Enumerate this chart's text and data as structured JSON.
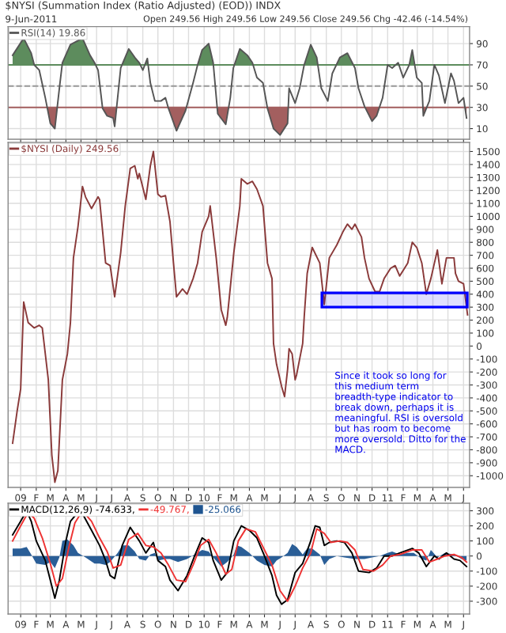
{
  "chart_data": [
    {
      "type": "line",
      "title": "$NYSI (Summation Index (Ratio Adjusted) (EOD)) INDX",
      "subtitle": "9-Jun-2011",
      "annotations": [
        "Open 249.56 High 249.56 Low 249.56 Close 249.56 Chg -42.46 (-14.54%)"
      ],
      "series": [
        {
          "name": "RSI(14) 19.86",
          "color": "#555555",
          "x": [
            "2008-12-16",
            "2009-01-07",
            "2009-01-22",
            "2009-01-28",
            "2009-02-07",
            "2009-02-19",
            "2009-03-01",
            "2009-03-10",
            "2009-03-19",
            "2009-03-25",
            "2009-04-10",
            "2009-05-04",
            "2009-05-19",
            "2009-05-28",
            "2009-06-04",
            "2009-06-13",
            "2009-06-22",
            "2009-07-04",
            "2009-07-07",
            "2009-07-19",
            "2009-08-04",
            "2009-08-16",
            "2009-08-25",
            "2009-09-01",
            "2009-09-10",
            "2009-09-16",
            "2009-09-25",
            "2009-10-07",
            "2009-10-16",
            "2009-10-22",
            "2009-11-07",
            "2009-11-25",
            "2009-12-10",
            "2009-12-19",
            "2009-12-28",
            "2010-01-10",
            "2010-01-19",
            "2010-01-28",
            "2010-02-13",
            "2010-02-22",
            "2010-02-28",
            "2010-03-13",
            "2010-03-28",
            "2010-04-07",
            "2010-04-16",
            "2010-04-28",
            "2010-05-07",
            "2010-05-19",
            "2010-06-01",
            "2010-06-16",
            "2010-06-19",
            "2010-07-01",
            "2010-07-10",
            "2010-07-19",
            "2010-08-01",
            "2010-08-13",
            "2010-08-22",
            "2010-09-04",
            "2010-09-13",
            "2010-09-28",
            "2010-10-13",
            "2010-10-28",
            "2010-11-04",
            "2010-11-16",
            "2010-12-01",
            "2010-12-10",
            "2010-12-22",
            "2011-01-01",
            "2011-01-10",
            "2011-01-22",
            "2011-02-01",
            "2011-02-13",
            "2011-02-19",
            "2011-02-28",
            "2011-03-10",
            "2011-03-13",
            "2011-03-25",
            "2011-04-04",
            "2011-04-13",
            "2011-04-25",
            "2011-05-07",
            "2011-05-13",
            "2011-05-22",
            "2011-06-01",
            "2011-06-07"
          ],
          "values": [
            79,
            95,
            81,
            70,
            65,
            39,
            15,
            10,
            48,
            72,
            89,
            95,
            79,
            72,
            65,
            29,
            22,
            20,
            12,
            67,
            85,
            77,
            72,
            65,
            76,
            53,
            36,
            36,
            39,
            29,
            8,
            27,
            53,
            70,
            84,
            90,
            72,
            24,
            14,
            39,
            67,
            85,
            79,
            72,
            58,
            53,
            29,
            10,
            4,
            15,
            48,
            34,
            48,
            70,
            89,
            77,
            48,
            36,
            62,
            77,
            81,
            67,
            48,
            31,
            17,
            22,
            39,
            70,
            67,
            72,
            58,
            70,
            84,
            58,
            53,
            22,
            36,
            70,
            60,
            34,
            62,
            55,
            34,
            39,
            20
          ]
        }
      ],
      "ref_lines": [
        {
          "axis": "y",
          "value": 70,
          "color": "#5d8c5d"
        },
        {
          "axis": "y",
          "value": 30,
          "color": "#a35f5f"
        },
        {
          "axis": "y",
          "value": 50,
          "color": "#999999",
          "line_style": "dashed"
        }
      ],
      "xlim": [
        "2008-12-07",
        "2011-06-13"
      ],
      "ylim": [
        0,
        106
      ],
      "yticks": [
        10,
        30,
        50,
        70,
        90
      ],
      "grid": true,
      "legend": "top left",
      "tick_labels": "y",
      "xticks": [
        {
          "value": "2009-01-01",
          "label": null
        },
        {
          "value": "2009-02-01",
          "label": null
        },
        {
          "value": "2009-03-01",
          "label": null
        },
        {
          "value": "2009-04-01",
          "label": null
        },
        {
          "value": "2009-05-01",
          "label": null
        },
        {
          "value": "2009-06-01",
          "label": null
        },
        {
          "value": "2009-07-01",
          "label": null
        },
        {
          "value": "2009-08-01",
          "label": null
        },
        {
          "value": "2009-09-01",
          "label": null
        },
        {
          "value": "2009-10-01",
          "label": null
        },
        {
          "value": "2009-11-01",
          "label": null
        },
        {
          "value": "2009-12-01",
          "label": null
        },
        {
          "value": "2010-01-01",
          "label": null
        },
        {
          "value": "2010-02-01",
          "label": null
        },
        {
          "value": "2010-03-01",
          "label": null
        },
        {
          "value": "2010-04-01",
          "label": null
        },
        {
          "value": "2010-05-01",
          "label": null
        },
        {
          "value": "2010-06-01",
          "label": null
        },
        {
          "value": "2010-07-01",
          "label": null
        },
        {
          "value": "2010-08-01",
          "label": null
        },
        {
          "value": "2010-09-01",
          "label": null
        },
        {
          "value": "2010-10-01",
          "label": null
        },
        {
          "value": "2010-11-01",
          "label": null
        },
        {
          "value": "2010-12-01",
          "label": null
        },
        {
          "value": "2011-01-01",
          "label": null
        },
        {
          "value": "2011-02-01",
          "label": null
        },
        {
          "value": "2011-03-01",
          "label": null
        },
        {
          "value": "2011-04-01",
          "label": null
        },
        {
          "value": "2011-05-01",
          "label": null
        },
        {
          "value": "2011-06-01",
          "label": null
        }
      ]
    },
    {
      "type": "line",
      "annotations": [
        "Since it took so long for this medium term breadth-type indicator to break down, perhaps it is meaningful. RSI is oversold but has room to become more oversold. Ditto for the MACD."
      ],
      "series": [
        {
          "name": "$NYSI (Daily) 249.56",
          "color": "#8a3a3a",
          "x": [
            "2008-12-16",
            "2008-12-25",
            "2009-01-01",
            "2009-01-07",
            "2009-01-16",
            "2009-01-28",
            "2009-02-07",
            "2009-02-13",
            "2009-02-25",
            "2009-03-04",
            "2009-03-10",
            "2009-03-16",
            "2009-03-25",
            "2009-04-04",
            "2009-04-10",
            "2009-04-16",
            "2009-04-25",
            "2009-05-04",
            "2009-05-10",
            "2009-05-22",
            "2009-06-04",
            "2009-06-07",
            "2009-06-19",
            "2009-06-28",
            "2009-07-07",
            "2009-07-19",
            "2009-07-28",
            "2009-08-07",
            "2009-08-16",
            "2009-08-22",
            "2009-08-25",
            "2009-09-07",
            "2009-09-16",
            "2009-09-22",
            "2009-10-01",
            "2009-10-07",
            "2009-10-16",
            "2009-10-25",
            "2009-11-01",
            "2009-11-07",
            "2009-11-19",
            "2009-11-28",
            "2009-12-10",
            "2009-12-19",
            "2009-12-28",
            "2010-01-10",
            "2010-01-13",
            "2010-01-25",
            "2010-02-04",
            "2010-02-13",
            "2010-02-16",
            "2010-03-01",
            "2010-03-13",
            "2010-03-16",
            "2010-03-28",
            "2010-04-07",
            "2010-04-16",
            "2010-04-28",
            "2010-05-07",
            "2010-05-16",
            "2010-05-19",
            "2010-05-25",
            "2010-06-04",
            "2010-06-10",
            "2010-06-16",
            "2010-06-19",
            "2010-06-25",
            "2010-07-01",
            "2010-07-04",
            "2010-07-16",
            "2010-07-19",
            "2010-07-25",
            "2010-08-04",
            "2010-08-19",
            "2010-08-28",
            "2010-09-07",
            "2010-09-22",
            "2010-10-04",
            "2010-10-13",
            "2010-10-22",
            "2010-10-28",
            "2010-11-10",
            "2010-11-16",
            "2010-11-25",
            "2010-12-07",
            "2010-12-16",
            "2010-12-25",
            "2011-01-07",
            "2011-01-16",
            "2011-01-25",
            "2011-02-10",
            "2011-02-19",
            "2011-02-28",
            "2011-03-10",
            "2011-03-19",
            "2011-03-28",
            "2011-04-10",
            "2011-04-19",
            "2011-04-28",
            "2011-05-13",
            "2011-05-16",
            "2011-05-22",
            "2011-06-01",
            "2011-06-09"
          ],
          "values": [
            -750,
            -500,
            -330,
            340,
            180,
            140,
            160,
            140,
            -260,
            -840,
            -1050,
            -960,
            -260,
            -60,
            180,
            680,
            920,
            1230,
            1150,
            1060,
            1150,
            1130,
            640,
            620,
            380,
            720,
            1080,
            1370,
            1390,
            1290,
            1330,
            1130,
            1390,
            1500,
            1170,
            1150,
            1160,
            960,
            640,
            380,
            440,
            400,
            520,
            640,
            880,
            1000,
            1080,
            680,
            280,
            160,
            220,
            720,
            1080,
            1290,
            1250,
            1270,
            1210,
            1080,
            640,
            520,
            20,
            -140,
            -310,
            -390,
            -180,
            -20,
            -60,
            -260,
            -220,
            20,
            220,
            560,
            760,
            640,
            320,
            680,
            780,
            880,
            940,
            900,
            940,
            840,
            680,
            520,
            420,
            420,
            520,
            600,
            620,
            540,
            640,
            800,
            760,
            640,
            400,
            520,
            740,
            480,
            680,
            680,
            560,
            500,
            480,
            240
          ]
        }
      ],
      "bands": [
        {
          "axis": "y",
          "from": 300,
          "to": 410,
          "color": "#0000ff"
        }
      ],
      "xlim": [
        "2008-12-07",
        "2011-06-13"
      ],
      "ylim": [
        -1090,
        1570
      ],
      "yticks": [
        -1000,
        -900,
        -800,
        -700,
        -600,
        -500,
        -400,
        -300,
        -200,
        -100,
        0,
        100,
        200,
        300,
        400,
        500,
        600,
        700,
        800,
        900,
        1000,
        1100,
        1200,
        1300,
        1400,
        1500
      ],
      "grid": true,
      "legend": "top left",
      "xticks": [
        {
          "value": "2009-01-01",
          "label": "09"
        },
        {
          "value": "2009-02-01",
          "label": "F"
        },
        {
          "value": "2009-03-01",
          "label": "M"
        },
        {
          "value": "2009-04-01",
          "label": "A"
        },
        {
          "value": "2009-05-01",
          "label": "M"
        },
        {
          "value": "2009-06-01",
          "label": "J"
        },
        {
          "value": "2009-07-01",
          "label": "J"
        },
        {
          "value": "2009-08-01",
          "label": "A"
        },
        {
          "value": "2009-09-01",
          "label": "S"
        },
        {
          "value": "2009-10-01",
          "label": "O"
        },
        {
          "value": "2009-11-01",
          "label": "N"
        },
        {
          "value": "2009-12-01",
          "label": "D"
        },
        {
          "value": "2010-01-01",
          "label": "10"
        },
        {
          "value": "2010-02-01",
          "label": "F"
        },
        {
          "value": "2010-03-01",
          "label": "M"
        },
        {
          "value": "2010-04-01",
          "label": "A"
        },
        {
          "value": "2010-05-01",
          "label": "M"
        },
        {
          "value": "2010-06-01",
          "label": "J"
        },
        {
          "value": "2010-07-01",
          "label": "J"
        },
        {
          "value": "2010-08-01",
          "label": "A"
        },
        {
          "value": "2010-09-01",
          "label": "S"
        },
        {
          "value": "2010-10-01",
          "label": "O"
        },
        {
          "value": "2010-11-01",
          "label": "N"
        },
        {
          "value": "2010-12-01",
          "label": "D"
        },
        {
          "value": "2011-01-01",
          "label": "11"
        },
        {
          "value": "2011-02-01",
          "label": "F"
        },
        {
          "value": "2011-03-01",
          "label": "M"
        },
        {
          "value": "2011-04-01",
          "label": "A"
        },
        {
          "value": "2011-05-01",
          "label": "M"
        },
        {
          "value": "2011-06-01",
          "label": "J"
        }
      ]
    },
    {
      "type": "line",
      "series": [
        {
          "name": "MACD(12,26,9) -74.633,",
          "color": "#000000",
          "x": [
            "2008-12-16",
            "2009-01-01",
            "2009-01-13",
            "2009-01-22",
            "2009-02-01",
            "2009-02-19",
            "2009-03-01",
            "2009-03-10",
            "2009-03-19",
            "2009-04-01",
            "2009-04-10",
            "2009-04-25",
            "2009-05-04",
            "2009-05-22",
            "2009-06-07",
            "2009-06-19",
            "2009-06-28",
            "2009-07-07",
            "2009-07-22",
            "2009-08-07",
            "2009-08-25",
            "2009-09-07",
            "2009-09-22",
            "2009-10-01",
            "2009-10-16",
            "2009-10-25",
            "2009-11-10",
            "2009-11-28",
            "2009-12-13",
            "2009-12-28",
            "2010-01-10",
            "2010-01-19",
            "2010-02-04",
            "2010-02-16",
            "2010-03-01",
            "2010-03-16",
            "2010-04-01",
            "2010-04-16",
            "2010-05-01",
            "2010-05-16",
            "2010-05-25",
            "2010-06-04",
            "2010-06-16",
            "2010-07-01",
            "2010-07-16",
            "2010-08-01",
            "2010-08-10",
            "2010-08-19",
            "2010-08-28",
            "2010-09-07",
            "2010-09-22",
            "2010-10-07",
            "2010-10-22",
            "2010-11-04",
            "2010-11-25",
            "2010-12-10",
            "2010-12-25",
            "2011-01-10",
            "2011-01-25",
            "2011-02-19",
            "2011-03-04",
            "2011-03-19",
            "2011-04-04",
            "2011-04-13",
            "2011-04-28",
            "2011-05-13",
            "2011-05-25",
            "2011-06-07"
          ],
          "values": [
            140,
            230,
            300,
            230,
            100,
            -30,
            -160,
            -280,
            -160,
            100,
            230,
            290,
            280,
            170,
            70,
            -30,
            -130,
            -150,
            70,
            190,
            100,
            20,
            90,
            -30,
            -70,
            -160,
            -230,
            -130,
            0,
            120,
            90,
            -30,
            -160,
            -110,
            100,
            200,
            170,
            120,
            0,
            -130,
            -260,
            -320,
            -290,
            -110,
            -50,
            100,
            200,
            190,
            70,
            90,
            100,
            90,
            20,
            -100,
            -110,
            -80,
            0,
            0,
            20,
            50,
            20,
            -70,
            0,
            -20,
            20,
            -20,
            -30,
            -70
          ]
        },
        {
          "name": "-49.767,",
          "color": "#ee3333",
          "x": [
            "2008-12-16",
            "2009-01-01",
            "2009-01-16",
            "2009-01-28",
            "2009-02-13",
            "2009-03-01",
            "2009-03-13",
            "2009-03-25",
            "2009-04-07",
            "2009-04-19",
            "2009-05-04",
            "2009-05-22",
            "2009-06-07",
            "2009-06-22",
            "2009-07-04",
            "2009-07-19",
            "2009-08-04",
            "2009-08-22",
            "2009-09-07",
            "2009-09-22",
            "2009-10-07",
            "2009-10-22",
            "2009-11-07",
            "2009-11-25",
            "2009-12-10",
            "2009-12-25",
            "2010-01-10",
            "2010-01-25",
            "2010-02-13",
            "2010-02-25",
            "2010-03-10",
            "2010-03-25",
            "2010-04-13",
            "2010-04-28",
            "2010-05-16",
            "2010-06-01",
            "2010-06-16",
            "2010-07-01",
            "2010-07-16",
            "2010-08-01",
            "2010-08-13",
            "2010-08-28",
            "2010-09-10",
            "2010-09-28",
            "2010-10-13",
            "2010-10-28",
            "2010-11-13",
            "2010-12-04",
            "2010-12-22",
            "2011-01-07",
            "2011-01-25",
            "2011-02-19",
            "2011-03-10",
            "2011-03-25",
            "2011-04-10",
            "2011-04-25",
            "2011-05-13",
            "2011-05-28",
            "2011-06-07"
          ],
          "values": [
            100,
            200,
            290,
            250,
            120,
            -50,
            -200,
            -150,
            60,
            220,
            300,
            230,
            120,
            30,
            -80,
            -60,
            110,
            150,
            70,
            60,
            20,
            -60,
            -160,
            -170,
            -60,
            70,
            110,
            20,
            -120,
            -90,
            100,
            180,
            160,
            60,
            -60,
            -230,
            -300,
            -200,
            -80,
            20,
            180,
            150,
            90,
            100,
            90,
            40,
            -90,
            -100,
            -60,
            0,
            10,
            40,
            40,
            -40,
            -20,
            0,
            10,
            -10,
            -40
          ]
        },
        {
          "name": "-25.066",
          "color": "#1f5591",
          "type": "area",
          "x": [
            "2008-12-16",
            "2009-01-01",
            "2009-01-13",
            "2009-01-22",
            "2009-02-01",
            "2009-02-19",
            "2009-03-01",
            "2009-03-10",
            "2009-03-19",
            "2009-03-25",
            "2009-04-04",
            "2009-04-16",
            "2009-04-25",
            "2009-05-10",
            "2009-05-28",
            "2009-06-07",
            "2009-06-19",
            "2009-06-28",
            "2009-07-13",
            "2009-07-22",
            "2009-08-04",
            "2009-08-16",
            "2009-08-25",
            "2009-09-07",
            "2009-09-16",
            "2009-09-25",
            "2009-10-01",
            "2009-10-16",
            "2009-10-25",
            "2009-11-10",
            "2009-11-28",
            "2009-12-13",
            "2009-12-28",
            "2010-01-10",
            "2010-01-19",
            "2010-02-04",
            "2010-02-16",
            "2010-03-01",
            "2010-03-07",
            "2010-03-16",
            "2010-04-01",
            "2010-04-16",
            "2010-05-01",
            "2010-05-16",
            "2010-05-25",
            "2010-06-04",
            "2010-06-16",
            "2010-06-25",
            "2010-07-04",
            "2010-07-16",
            "2010-07-25",
            "2010-08-04",
            "2010-08-19",
            "2010-08-28",
            "2010-09-07",
            "2010-09-22",
            "2010-10-07",
            "2010-10-28",
            "2010-11-16",
            "2010-12-01",
            "2010-12-16",
            "2011-01-01",
            "2011-01-10",
            "2011-01-25",
            "2011-02-10",
            "2011-02-22",
            "2011-03-10",
            "2011-03-19",
            "2011-03-28",
            "2011-04-10",
            "2011-04-25",
            "2011-05-13",
            "2011-05-28",
            "2011-06-07"
          ],
          "values": [
            50,
            50,
            60,
            10,
            -50,
            -60,
            -40,
            -80,
            -10,
            100,
            110,
            70,
            20,
            -10,
            -50,
            -50,
            -60,
            -40,
            20,
            70,
            70,
            30,
            -20,
            -30,
            10,
            20,
            -30,
            -20,
            -20,
            -40,
            -20,
            10,
            40,
            30,
            -10,
            -70,
            -40,
            10,
            70,
            60,
            20,
            -30,
            -60,
            -70,
            -30,
            -10,
            20,
            80,
            60,
            10,
            50,
            50,
            10,
            -60,
            -20,
            0,
            -10,
            -20,
            -20,
            -10,
            0,
            20,
            30,
            10,
            20,
            20,
            -20,
            -30,
            40,
            -10,
            20,
            10,
            -20,
            -30
          ]
        }
      ],
      "xlim": [
        "2008-12-07",
        "2011-06-13"
      ],
      "ylim": [
        -385,
        350
      ],
      "yticks": [
        -300,
        -200,
        -100,
        0,
        100,
        200,
        300
      ],
      "grid": true,
      "legend": "top left",
      "xticks": [
        {
          "value": "2009-01-01",
          "label": "09"
        },
        {
          "value": "2009-02-01",
          "label": "F"
        },
        {
          "value": "2009-03-01",
          "label": "M"
        },
        {
          "value": "2009-04-01",
          "label": "A"
        },
        {
          "value": "2009-05-01",
          "label": "M"
        },
        {
          "value": "2009-06-01",
          "label": "J"
        },
        {
          "value": "2009-07-01",
          "label": "J"
        },
        {
          "value": "2009-08-01",
          "label": "A"
        },
        {
          "value": "2009-09-01",
          "label": "S"
        },
        {
          "value": "2009-10-01",
          "label": "O"
        },
        {
          "value": "2009-11-01",
          "label": "N"
        },
        {
          "value": "2009-12-01",
          "label": "D"
        },
        {
          "value": "2010-01-01",
          "label": "10"
        },
        {
          "value": "2010-02-01",
          "label": "F"
        },
        {
          "value": "2010-03-01",
          "label": "M"
        },
        {
          "value": "2010-04-01",
          "label": "A"
        },
        {
          "value": "2010-05-01",
          "label": "M"
        },
        {
          "value": "2010-06-01",
          "label": "J"
        },
        {
          "value": "2010-07-01",
          "label": "J"
        },
        {
          "value": "2010-08-01",
          "label": "A"
        },
        {
          "value": "2010-09-01",
          "label": "S"
        },
        {
          "value": "2010-10-01",
          "label": "O"
        },
        {
          "value": "2010-11-01",
          "label": "N"
        },
        {
          "value": "2010-12-01",
          "label": "D"
        },
        {
          "value": "2011-01-01",
          "label": "11"
        },
        {
          "value": "2011-02-01",
          "label": "F"
        },
        {
          "value": "2011-03-01",
          "label": "M"
        },
        {
          "value": "2011-04-01",
          "label": "A"
        },
        {
          "value": "2011-05-01",
          "label": "M"
        },
        {
          "value": "2011-06-01",
          "label": "J"
        }
      ]
    }
  ]
}
